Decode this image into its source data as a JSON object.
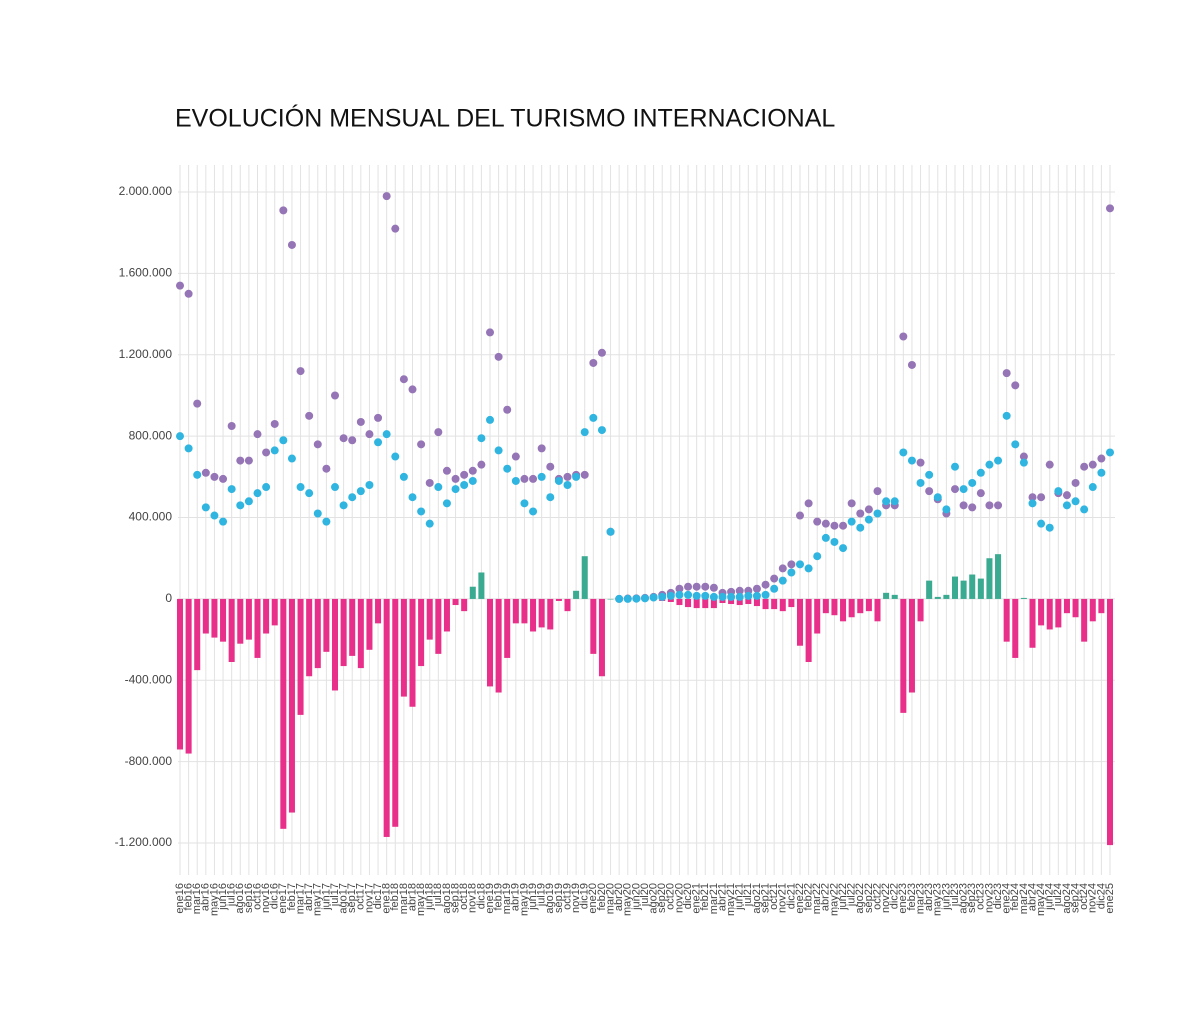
{
  "chart_data": {
    "type": "line_bar",
    "title": "EVOLUCIÓN MENSUAL DEL TURISMO INTERNACIONAL",
    "categories": [
      "ene16",
      "feb16",
      "mar16",
      "abr16",
      "may16",
      "jun16",
      "jul16",
      "ago16",
      "sep16",
      "oct16",
      "nov16",
      "dic16",
      "ene17",
      "feb17",
      "mar17",
      "abr17",
      "may17",
      "jun17",
      "jul17",
      "ago17",
      "sep17",
      "oct17",
      "nov17",
      "dic17",
      "ene18",
      "feb18",
      "mar18",
      "abr18",
      "may18",
      "jun18",
      "jul18",
      "ago18",
      "sep18",
      "oct18",
      "nov18",
      "dic18",
      "ene19",
      "feb19",
      "mar19",
      "abr19",
      "may19",
      "jun19",
      "jul19",
      "ago19",
      "sep19",
      "oct19",
      "nov19",
      "dic19",
      "ene20",
      "feb20",
      "mar20",
      "abr20",
      "may20",
      "jun20",
      "jul20",
      "ago20",
      "sep20",
      "oct20",
      "nov20",
      "dic20",
      "ene21",
      "feb21",
      "mar21",
      "abr21",
      "may21",
      "jun21",
      "jul21",
      "ago21",
      "sep21",
      "oct21",
      "nov21",
      "dic21",
      "ene22",
      "feb22",
      "mar22",
      "abr22",
      "may22",
      "jun22",
      "jul22",
      "ago22",
      "sep22",
      "oct22",
      "nov22",
      "dic22",
      "ene23",
      "feb23",
      "mar23",
      "abr23",
      "may23",
      "jun23",
      "jul23",
      "ago23",
      "sep23",
      "oct23",
      "nov23",
      "dic23",
      "ene24",
      "feb24",
      "mar24",
      "abr24",
      "may24",
      "jun24",
      "jul24",
      "ago24",
      "sep24",
      "oct24",
      "nov24",
      "dic24",
      "ene25"
    ],
    "series": [
      {
        "kind": "bar",
        "color": "#3aaa90",
        "negative_color": "#e8308a",
        "values": [
          -740000,
          -760000,
          -350000,
          -170000,
          -190000,
          -210000,
          -310000,
          -220000,
          -200000,
          -290000,
          -170000,
          -130000,
          -1130000,
          -1050000,
          -570000,
          -380000,
          -340000,
          -260000,
          -450000,
          -330000,
          -280000,
          -340000,
          -250000,
          -120000,
          -1170000,
          -1120000,
          -480000,
          -530000,
          -330000,
          -200000,
          -270000,
          -160000,
          -30000,
          -60000,
          60000,
          130000,
          -430000,
          -460000,
          -290000,
          -120000,
          -120000,
          -160000,
          -140000,
          -150000,
          -10000,
          -60000,
          40000,
          210000,
          -270000,
          -380000,
          0,
          0,
          0,
          0,
          0,
          -5000,
          -10000,
          -15000,
          -30000,
          -40000,
          -45000,
          -45000,
          -45000,
          -20000,
          -25000,
          -30000,
          -25000,
          -35000,
          -50000,
          -50000,
          -60000,
          -40000,
          -230000,
          -310000,
          -170000,
          -70000,
          -80000,
          -110000,
          -90000,
          -70000,
          -60000,
          -110000,
          30000,
          20000,
          -560000,
          -460000,
          -110000,
          90000,
          10000,
          20000,
          110000,
          90000,
          120000,
          100000,
          200000,
          220000,
          -210000,
          -290000,
          5000,
          -240000,
          -130000,
          -150000,
          -140000,
          -70000,
          -90000,
          -210000,
          -110000,
          -70000,
          -1210000
        ]
      },
      {
        "kind": "line",
        "color": "#b8a9d6",
        "marker_color": "#9575b5",
        "values": [
          1540000,
          1500000,
          960000,
          620000,
          600000,
          590000,
          850000,
          680000,
          680000,
          810000,
          720000,
          860000,
          1910000,
          1740000,
          1120000,
          900000,
          760000,
          640000,
          1000000,
          790000,
          780000,
          870000,
          810000,
          890000,
          1980000,
          1820000,
          1080000,
          1030000,
          760000,
          570000,
          820000,
          630000,
          590000,
          610000,
          630000,
          660000,
          1310000,
          1190000,
          930000,
          700000,
          590000,
          590000,
          740000,
          650000,
          590000,
          600000,
          610000,
          610000,
          1160000,
          1210000,
          330000,
          0,
          2000,
          3000,
          5000,
          10000,
          20000,
          30000,
          50000,
          60000,
          60000,
          60000,
          55000,
          30000,
          35000,
          40000,
          40000,
          50000,
          70000,
          100000,
          150000,
          170000,
          410000,
          470000,
          380000,
          370000,
          360000,
          360000,
          470000,
          420000,
          440000,
          530000,
          460000,
          460000,
          1290000,
          1150000,
          670000,
          530000,
          490000,
          420000,
          540000,
          460000,
          450000,
          520000,
          460000,
          460000,
          1110000,
          1050000,
          700000,
          500000,
          500000,
          660000,
          520000,
          510000,
          570000,
          650000,
          660000,
          690000,
          1920000
        ]
      },
      {
        "kind": "line",
        "color": "#8fd8ee",
        "marker_color": "#30b5e0",
        "values": [
          800000,
          740000,
          610000,
          450000,
          410000,
          380000,
          540000,
          460000,
          480000,
          520000,
          550000,
          730000,
          780000,
          690000,
          550000,
          520000,
          420000,
          380000,
          550000,
          460000,
          500000,
          530000,
          560000,
          770000,
          810000,
          700000,
          600000,
          500000,
          430000,
          370000,
          550000,
          470000,
          540000,
          560000,
          580000,
          790000,
          880000,
          730000,
          640000,
          580000,
          470000,
          430000,
          600000,
          500000,
          580000,
          560000,
          600000,
          820000,
          890000,
          830000,
          330000,
          0,
          0,
          1000,
          3000,
          7000,
          10000,
          15000,
          20000,
          20000,
          15000,
          15000,
          10000,
          10000,
          10000,
          10000,
          15000,
          15000,
          20000,
          50000,
          90000,
          130000,
          170000,
          150000,
          210000,
          300000,
          280000,
          250000,
          380000,
          350000,
          390000,
          420000,
          480000,
          480000,
          720000,
          680000,
          570000,
          610000,
          500000,
          440000,
          650000,
          540000,
          570000,
          620000,
          660000,
          680000,
          900000,
          760000,
          670000,
          470000,
          370000,
          350000,
          530000,
          460000,
          480000,
          440000,
          550000,
          620000,
          720000
        ]
      }
    ],
    "ylim": [
      -1357000,
      2133000
    ],
    "yticks": [
      {
        "value": -1200000,
        "label": "-1.200.000"
      },
      {
        "value": -800000,
        "label": "-800.000"
      },
      {
        "value": -400000,
        "label": "-400.000"
      },
      0,
      {
        "value": 400000,
        "label": "400.000"
      },
      {
        "value": 800000,
        "label": "800.000"
      },
      {
        "value": 1200000,
        "label": "1.200.000"
      },
      {
        "value": 1600000,
        "label": "1.600.000"
      },
      {
        "value": 2000000,
        "label": "2.000.000"
      }
    ],
    "grid": true
  }
}
